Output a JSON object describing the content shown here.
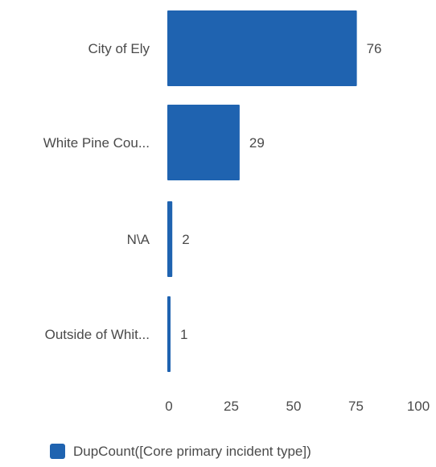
{
  "chart_data": {
    "type": "bar",
    "orientation": "horizontal",
    "categories": [
      "City of Ely",
      "White Pine Cou...",
      "N\\A",
      "Outside of Whit..."
    ],
    "series": [
      {
        "name": "DupCount([Core primary incident type])",
        "values": [
          76,
          29,
          2,
          1
        ],
        "color": "#1f63b0"
      }
    ],
    "xlim": [
      0,
      100
    ],
    "xticks": [
      0,
      25,
      50,
      75,
      100
    ],
    "grid": false,
    "legend_position": "bottom-center",
    "data_labels": true
  }
}
